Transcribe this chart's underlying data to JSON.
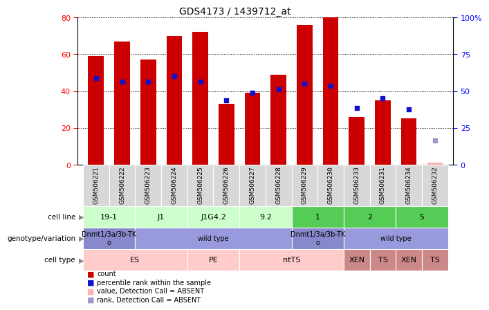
{
  "title": "GDS4173 / 1439712_at",
  "samples": [
    "GSM506221",
    "GSM506222",
    "GSM506223",
    "GSM506224",
    "GSM506225",
    "GSM506226",
    "GSM506227",
    "GSM506228",
    "GSM506229",
    "GSM506230",
    "GSM506233",
    "GSM506231",
    "GSM506234",
    "GSM506232"
  ],
  "count_values": [
    59,
    67,
    57,
    70,
    72,
    33,
    39,
    49,
    76,
    80,
    26,
    35,
    25,
    1
  ],
  "percentile_values": [
    47,
    45,
    45,
    48,
    45,
    35,
    39,
    41,
    44,
    43,
    31,
    36,
    30,
    13
  ],
  "absent_flag": [
    0,
    0,
    0,
    0,
    0,
    0,
    0,
    0,
    0,
    0,
    0,
    0,
    0,
    1
  ],
  "absent_count": 1,
  "absent_rank_val": 13,
  "ylim_left": [
    0,
    80
  ],
  "ylim_right": [
    0,
    100
  ],
  "yticks_left": [
    0,
    20,
    40,
    60,
    80
  ],
  "yticks_right": [
    0,
    25,
    50,
    75,
    100
  ],
  "bar_color": "#cc0000",
  "percentile_color": "#1111cc",
  "absent_bar_color": "#ffb0b0",
  "absent_rank_color": "#9999cc",
  "bg_color": "#ffffff",
  "grid_color": "#000000",
  "sample_bg": "#d8d8d8",
  "cell_line_light": "#ccffcc",
  "cell_line_dark": "#55cc55",
  "geno_dark": "#8888cc",
  "geno_light": "#9999dd",
  "celltype_light": "#ffcccc",
  "celltype_dark": "#cc8888",
  "cell_line_spans": [
    {
      "s": 0,
      "e": 1,
      "text": "19-1",
      "dark": false
    },
    {
      "s": 2,
      "e": 3,
      "text": "J1",
      "dark": false
    },
    {
      "s": 4,
      "e": 5,
      "text": "J1G4.2",
      "dark": false
    },
    {
      "s": 6,
      "e": 7,
      "text": "9.2",
      "dark": false
    },
    {
      "s": 8,
      "e": 9,
      "text": "1",
      "dark": true
    },
    {
      "s": 10,
      "e": 11,
      "text": "2",
      "dark": true
    },
    {
      "s": 12,
      "e": 13,
      "text": "5",
      "dark": true
    }
  ],
  "geno_spans": [
    {
      "s": 0,
      "e": 1,
      "text": "Dnmt1/3a/3b-TK\no",
      "dark": true
    },
    {
      "s": 2,
      "e": 7,
      "text": "wild type",
      "dark": false
    },
    {
      "s": 8,
      "e": 9,
      "text": "Dnmt1/3a/3b-TK\no",
      "dark": true
    },
    {
      "s": 10,
      "e": 13,
      "text": "wild type",
      "dark": false
    }
  ],
  "celltype_spans": [
    {
      "s": 0,
      "e": 3,
      "text": "ES",
      "dark": false
    },
    {
      "s": 4,
      "e": 5,
      "text": "PE",
      "dark": false
    },
    {
      "s": 6,
      "e": 9,
      "text": "ntTS",
      "dark": false
    },
    {
      "s": 10,
      "e": 10,
      "text": "XEN",
      "dark": true
    },
    {
      "s": 11,
      "e": 11,
      "text": "TS",
      "dark": true
    },
    {
      "s": 12,
      "e": 12,
      "text": "XEN",
      "dark": true
    },
    {
      "s": 13,
      "e": 13,
      "text": "TS",
      "dark": true
    }
  ],
  "legend_items": [
    {
      "color": "#cc0000",
      "label": "count"
    },
    {
      "color": "#1111cc",
      "label": "percentile rank within the sample"
    },
    {
      "color": "#ffb0b0",
      "label": "value, Detection Call = ABSENT"
    },
    {
      "color": "#9999cc",
      "label": "rank, Detection Call = ABSENT"
    }
  ]
}
